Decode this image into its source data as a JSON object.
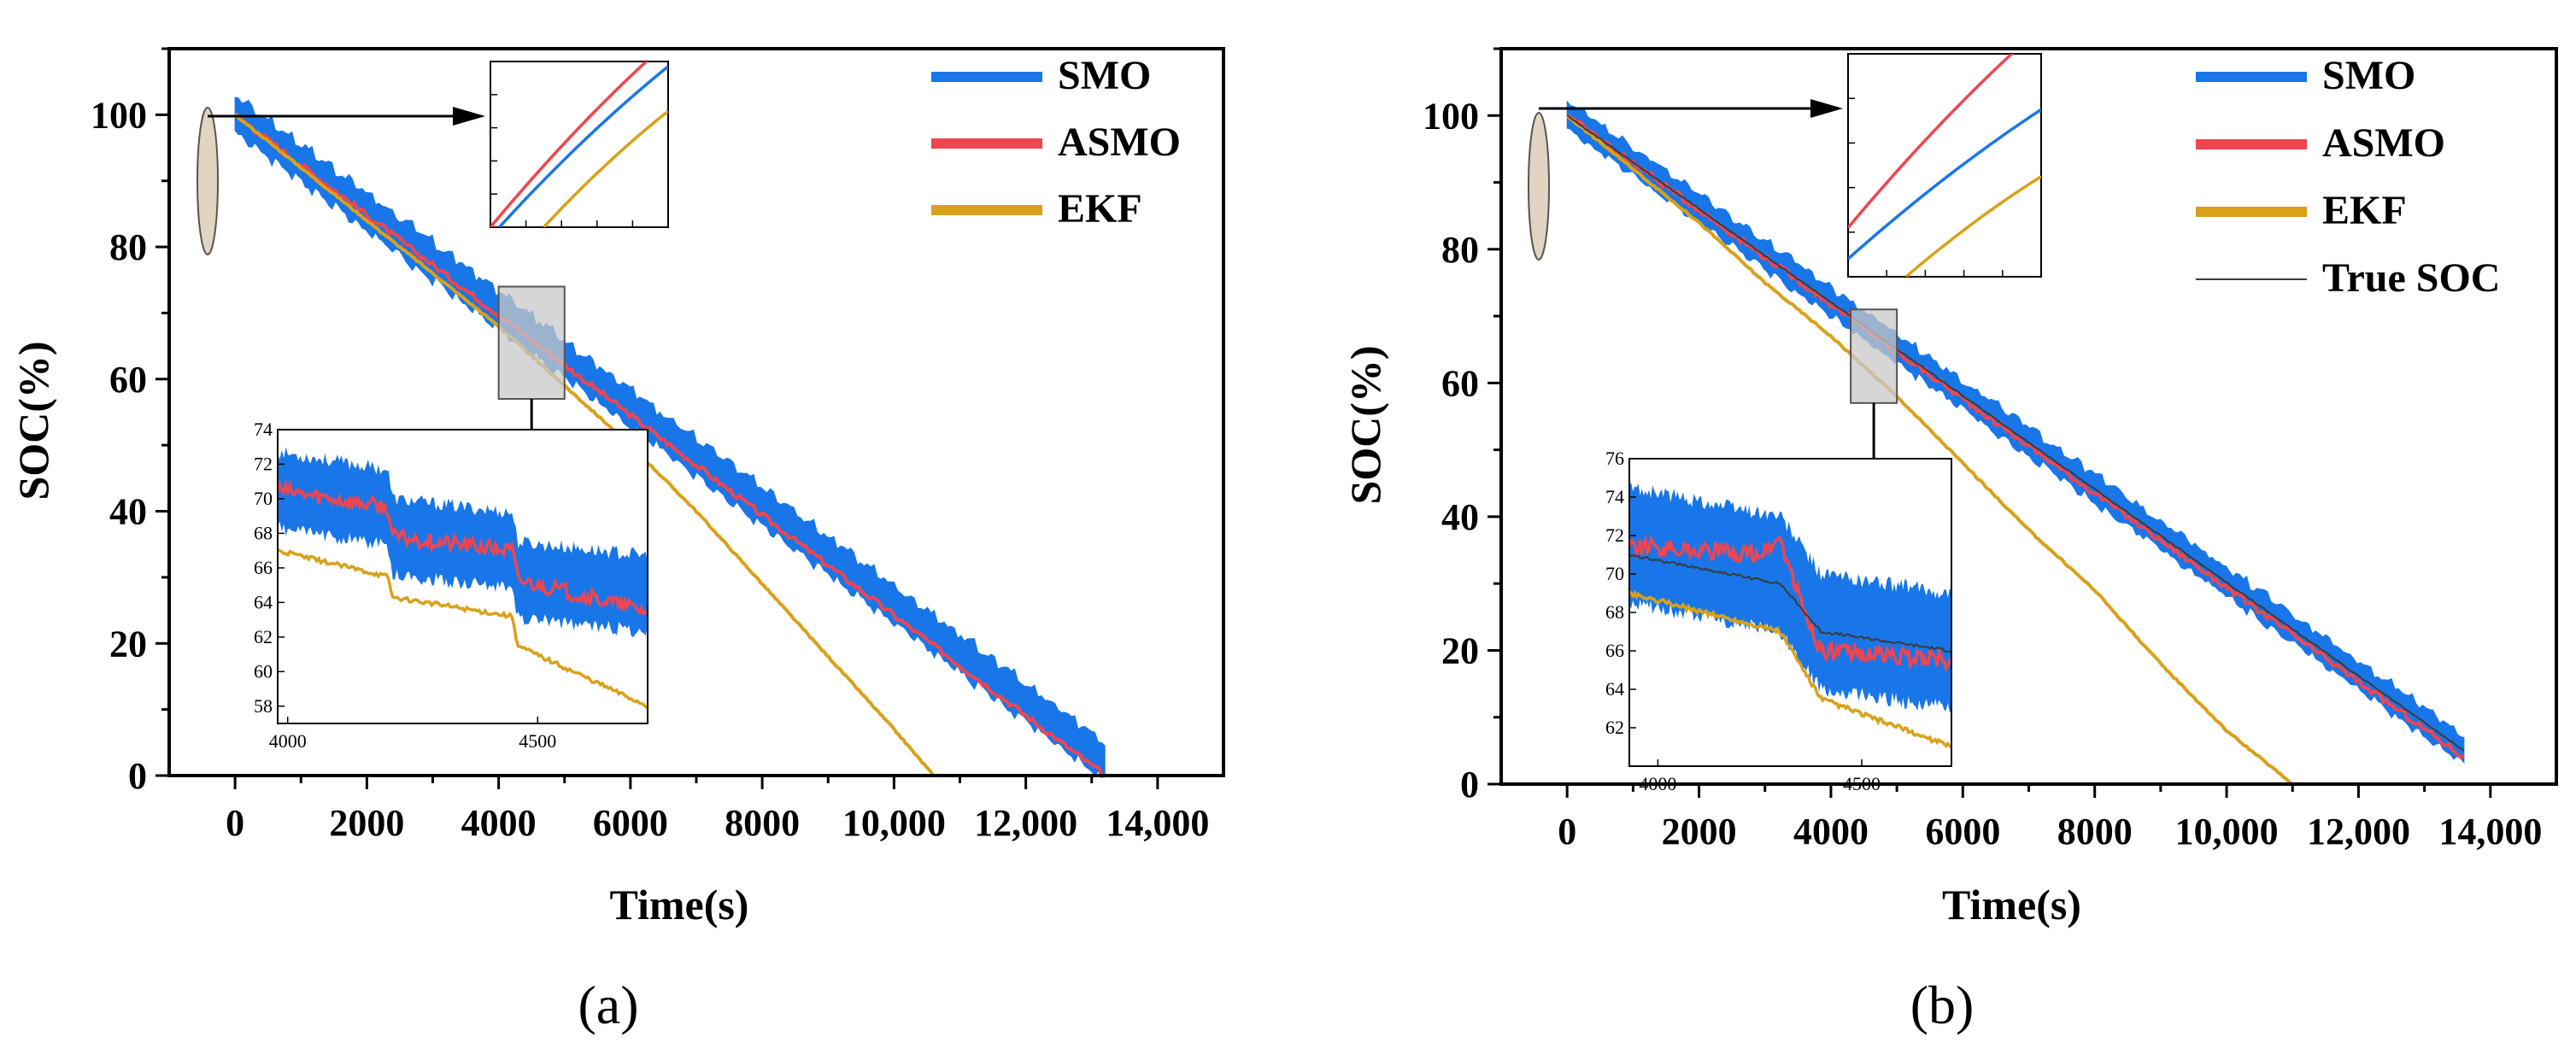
{
  "figure": {
    "panel_labels": [
      "(a)",
      "(b)"
    ]
  },
  "colors": {
    "smo": "#1976e8",
    "asmo": "#ef4550",
    "ekf": "#d9a11a",
    "true_soc": "#3a3a3a",
    "zoom_box": "#c8c8c8"
  },
  "chart_data": [
    {
      "type": "line",
      "panel": "(a)",
      "xlabel": "Time(s)",
      "ylabel": "SOC(%)",
      "xlim": [
        -1000,
        15000
      ],
      "ylim": [
        0,
        110
      ],
      "xticks": [
        0,
        2000,
        4000,
        6000,
        8000,
        10000,
        12000,
        14000
      ],
      "xtick_labels": [
        "0",
        "2000",
        "4000",
        "6000",
        "8000",
        "10,000",
        "12,000",
        "14,000"
      ],
      "yticks": [
        0,
        20,
        40,
        60,
        80,
        100
      ],
      "ytick_labels": [
        "0",
        "20",
        "40",
        "60",
        "80",
        "100"
      ],
      "legend": [
        "SMO",
        "ASMO",
        "EKF"
      ],
      "series": [
        {
          "name": "SMO",
          "x": [
            0,
            13200
          ],
          "y": [
            100,
            2
          ],
          "band": 3.5
        },
        {
          "name": "ASMO",
          "x": [
            0,
            13200
          ],
          "y": [
            100,
            0
          ]
        },
        {
          "name": "EKF",
          "x": [
            0,
            1000,
            2000,
            3000,
            4000,
            5000,
            6000,
            7000,
            8000,
            9000,
            10000,
            10600
          ],
          "y": [
            100,
            92,
            84,
            76,
            68,
            59,
            50,
            40,
            29,
            18,
            7,
            0
          ]
        }
      ],
      "zoom_region": {
        "x": [
          4000,
          5000
        ],
        "y": [
          57,
          74
        ]
      },
      "inset": {
        "xlim": [
          3980,
          4720
        ],
        "ylim": [
          57,
          74
        ],
        "xticks": [
          4000,
          4500
        ],
        "xtick_labels": [
          "4000",
          "4500"
        ],
        "yticks": [
          58,
          60,
          62,
          64,
          66,
          68,
          70,
          72,
          74
        ],
        "ytick_labels": [
          "58",
          "60",
          "62",
          "64",
          "66",
          "68",
          "70",
          "72",
          "74"
        ],
        "series": [
          {
            "name": "SMO",
            "x": [
              3980,
              4200,
              4210,
              4450,
              4460,
              4720
            ],
            "y": [
              70.5,
              69.5,
              67.8,
              67,
              65.3,
              64.5
            ],
            "band": 2.2
          },
          {
            "name": "ASMO",
            "x": [
              3980,
              4200,
              4210,
              4450,
              4460,
              4720
            ],
            "y": [
              70.5,
              69.5,
              67.8,
              67,
              65.3,
              63.5
            ]
          },
          {
            "name": "EKF",
            "x": [
              3980,
              4200,
              4210,
              4450,
              4460,
              4720
            ],
            "y": [
              67,
              65.5,
              64.3,
              63.2,
              61.5,
              58
            ]
          }
        ]
      },
      "start_inset": {
        "series": [
          {
            "name": "ASMO",
            "x": [
              0,
              1
            ],
            "y": [
              0,
              1.12
            ]
          },
          {
            "name": "SMO",
            "x": [
              0.05,
              1
            ],
            "y": [
              0,
              0.97
            ]
          },
          {
            "name": "EKF",
            "x": [
              0.3,
              1
            ],
            "y": [
              0,
              0.7
            ]
          }
        ]
      }
    },
    {
      "type": "line",
      "panel": "(b)",
      "xlabel": "Time(s)",
      "ylabel": "SOC(%)",
      "xlim": [
        -1000,
        15000
      ],
      "ylim": [
        0,
        110
      ],
      "xticks": [
        0,
        2000,
        4000,
        6000,
        8000,
        10000,
        12000,
        14000
      ],
      "xtick_labels": [
        "0",
        "2000",
        "4000",
        "6000",
        "8000",
        "10,000",
        "12,000",
        "14,000"
      ],
      "yticks": [
        0,
        20,
        40,
        60,
        80,
        100
      ],
      "ytick_labels": [
        "0",
        "20",
        "40",
        "60",
        "80",
        "100"
      ],
      "legend": [
        "SMO",
        "ASMO",
        "EKF",
        "True SOC"
      ],
      "series": [
        {
          "name": "SMO",
          "x": [
            0,
            13600
          ],
          "y": [
            100,
            5
          ],
          "band": 2.5
        },
        {
          "name": "ASMO",
          "x": [
            0,
            13600
          ],
          "y": [
            100,
            4
          ]
        },
        {
          "name": "EKF",
          "x": [
            0,
            1000,
            2000,
            3000,
            4000,
            5000,
            6000,
            7000,
            8000,
            9000,
            10000,
            11000
          ],
          "y": [
            100,
            92,
            84,
            75,
            67,
            58,
            48,
            38,
            29,
            18,
            8,
            0
          ]
        },
        {
          "name": "True SOC",
          "x": [
            0,
            13600
          ],
          "y": [
            100,
            5
          ]
        }
      ],
      "zoom_region": {
        "x": [
          4300,
          5000
        ],
        "y": [
          57,
          71
        ]
      },
      "inset": {
        "xlim": [
          3930,
          4720
        ],
        "ylim": [
          60,
          76
        ],
        "xticks": [
          4000,
          4500
        ],
        "xtick_labels": [
          "4000",
          "4500"
        ],
        "yticks": [
          62,
          64,
          66,
          68,
          70,
          72,
          74,
          76
        ],
        "ytick_labels": [
          "62",
          "64",
          "66",
          "68",
          "70",
          "72",
          "74",
          "76"
        ],
        "series": [
          {
            "name": "SMO",
            "x": [
              3930,
              4300,
              4400,
              4720
            ],
            "y": [
              71.5,
              70,
              67,
              66
            ],
            "band": 3.0
          },
          {
            "name": "ASMO",
            "x": [
              3930,
              4250,
              4300,
              4350,
              4400,
              4720
            ],
            "y": [
              71.5,
              71,
              71.8,
              68.5,
              66,
              65.5
            ]
          },
          {
            "name": "EKF",
            "x": [
              3930,
              4300,
              4400,
              4720
            ],
            "y": [
              69,
              67,
              63.5,
              61
            ]
          },
          {
            "name": "True SOC",
            "x": [
              3930,
              4300,
              4400,
              4720
            ],
            "y": [
              71,
              69.5,
              67,
              66
            ]
          }
        ]
      },
      "start_inset": {
        "series": [
          {
            "name": "ASMO",
            "x": [
              0,
              1
            ],
            "y": [
              0.22,
              1.12
            ]
          },
          {
            "name": "SMO",
            "x": [
              0,
              1
            ],
            "y": [
              0.08,
              0.75
            ]
          },
          {
            "name": "EKF",
            "x": [
              0.3,
              1
            ],
            "y": [
              0,
              0.45
            ]
          }
        ]
      }
    }
  ]
}
